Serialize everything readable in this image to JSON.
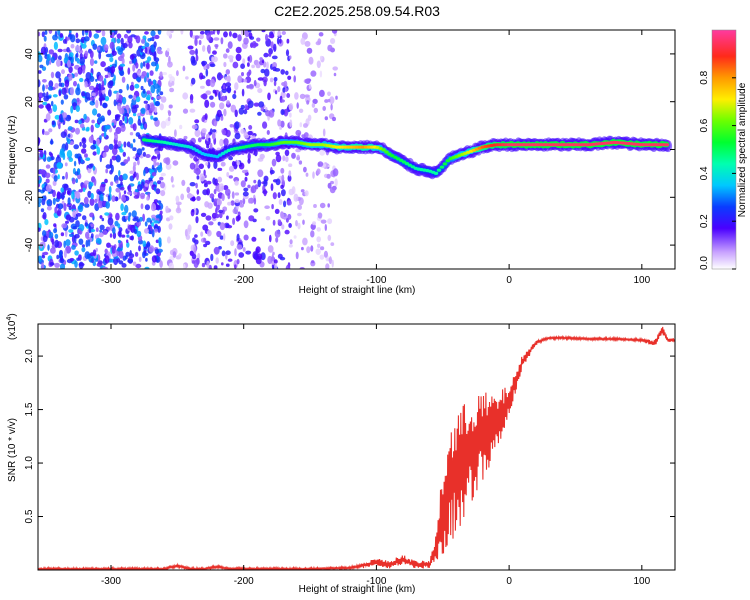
{
  "figure": {
    "title": "C2E2.2025.258.09.54.R03"
  },
  "chart_data": [
    {
      "type": "heatmap",
      "title": "C2E2.2025.258.09.54.R03",
      "xlabel": "Height of straight line (km)",
      "ylabel": "Frequency (Hz)",
      "xlim": [
        -355,
        125
      ],
      "ylim": [
        -50,
        50
      ],
      "xticks": [
        -300,
        -200,
        -100,
        0,
        100
      ],
      "yticks": [
        -40,
        -20,
        0,
        20,
        40
      ],
      "colorbar": {
        "label": "Normalized spectral amplitude",
        "range": [
          0.0,
          1.0
        ],
        "ticks": [
          0.0,
          0.2,
          0.4,
          0.6,
          0.8
        ],
        "tick_labels": [
          "0.0",
          "0.2",
          "0.4",
          "0.6",
          "0.8"
        ]
      },
      "ridge": {
        "name": "Dominant frequency track",
        "x": [
          -275,
          -260,
          -250,
          -240,
          -230,
          -220,
          -210,
          -200,
          -190,
          -180,
          -170,
          -160,
          -150,
          -140,
          -130,
          -120,
          -110,
          -100,
          -95,
          -90,
          -80,
          -70,
          -60,
          -55,
          -50,
          -45,
          -40,
          -30,
          -20,
          -10,
          0,
          20,
          40,
          60,
          80,
          100,
          120
        ],
        "freq": [
          4,
          3,
          2,
          1,
          -2,
          -3,
          0,
          1,
          2,
          2,
          3,
          3,
          2,
          2,
          1,
          1,
          1,
          1,
          0,
          -2,
          -5,
          -8,
          -9,
          -10,
          -7,
          -4,
          -3,
          -1,
          1,
          2,
          2,
          2,
          2,
          2,
          3,
          2,
          2
        ],
        "amplitude": [
          0.5,
          0.45,
          0.4,
          0.4,
          0.35,
          0.35,
          0.45,
          0.5,
          0.5,
          0.55,
          0.6,
          0.6,
          0.65,
          0.65,
          0.7,
          0.75,
          0.8,
          0.7,
          0.6,
          0.55,
          0.5,
          0.45,
          0.45,
          0.45,
          0.5,
          0.55,
          0.6,
          0.7,
          0.85,
          0.9,
          0.95,
          0.95,
          0.95,
          0.95,
          0.95,
          0.95,
          0.95
        ]
      },
      "noise_regions": [
        {
          "x_range": [
            -355,
            -262
          ],
          "amplitude": 0.28
        },
        {
          "x_range": [
            -262,
            -240
          ],
          "amplitude": 0.08
        },
        {
          "x_range": [
            -240,
            -165
          ],
          "amplitude": 0.18
        },
        {
          "x_range": [
            -165,
            -130
          ],
          "amplitude": 0.1
        }
      ]
    },
    {
      "type": "line",
      "title": "",
      "xlabel": "Height of straight line (km)",
      "ylabel": "SNR (10 * v/v)",
      "scale_label": "(x10",
      "scale_exponent": "4",
      "scale_suffix": ")",
      "xlim": [
        -355,
        125
      ],
      "ylim": [
        0,
        2.3
      ],
      "xticks": [
        -300,
        -200,
        -100,
        0,
        100
      ],
      "yticks": [
        0.5,
        1.0,
        1.5,
        2.0
      ],
      "ytick_labels": [
        "0.5",
        "1.0",
        "1.5",
        "2.0"
      ],
      "series": [
        {
          "name": "SNR",
          "color": "#e8302a",
          "x": [
            -355,
            -300,
            -260,
            -250,
            -240,
            -230,
            -220,
            -210,
            -200,
            -180,
            -150,
            -120,
            -110,
            -100,
            -95,
            -90,
            -80,
            -75,
            -70,
            -60,
            -55,
            -50,
            -45,
            -40,
            -35,
            -30,
            -25,
            -20,
            -15,
            -10,
            -5,
            0,
            5,
            10,
            20,
            25,
            30,
            40,
            60,
            80,
            100,
            110,
            115,
            120,
            125
          ],
          "y": [
            0.01,
            0.01,
            0.01,
            0.04,
            0.01,
            0.01,
            0.03,
            0.01,
            0.01,
            0.01,
            0.01,
            0.02,
            0.04,
            0.08,
            0.06,
            0.05,
            0.1,
            0.07,
            0.05,
            0.05,
            0.2,
            0.55,
            0.8,
            0.9,
            1.0,
            1.1,
            1.2,
            1.25,
            1.3,
            1.35,
            1.45,
            1.6,
            1.75,
            1.95,
            2.12,
            2.15,
            2.17,
            2.17,
            2.16,
            2.16,
            2.15,
            2.12,
            2.25,
            2.15,
            2.15
          ],
          "spread": [
            0.01,
            0.01,
            0.01,
            0.01,
            0.01,
            0.01,
            0.01,
            0.01,
            0.01,
            0.01,
            0.01,
            0.01,
            0.02,
            0.03,
            0.03,
            0.03,
            0.04,
            0.03,
            0.03,
            0.03,
            0.12,
            0.35,
            0.45,
            0.5,
            0.45,
            0.45,
            0.4,
            0.35,
            0.3,
            0.25,
            0.2,
            0.12,
            0.08,
            0.05,
            0.02,
            0.01,
            0.01,
            0.01,
            0.01,
            0.01,
            0.01,
            0.03,
            0.04,
            0.02,
            0.02
          ]
        }
      ]
    }
  ]
}
